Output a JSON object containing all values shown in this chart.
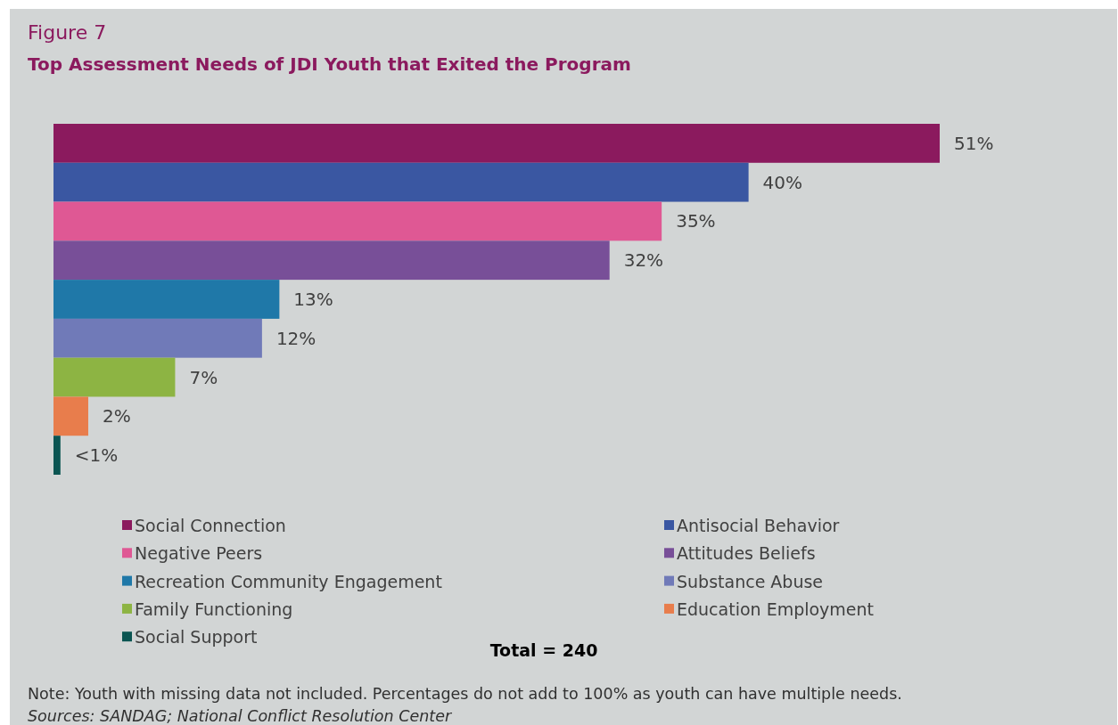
{
  "chart_data": {
    "type": "bar",
    "orientation": "horizontal",
    "stacked": true,
    "title": "Figure 7",
    "subtitle": "Top Assessment Needs of JDI Youth that Exited the Program",
    "categories": [
      null,
      null,
      null,
      null,
      null,
      null,
      null,
      null,
      null
    ],
    "series": [
      {
        "name": "Social Connection",
        "color": "#8b1a5e",
        "values": [
          51,
          null,
          null,
          null,
          null,
          null,
          null,
          null,
          null
        ],
        "value_labels": [
          "51%",
          null,
          null,
          null,
          null,
          null,
          null,
          null,
          null
        ]
      },
      {
        "name": "Antisocial Behavior",
        "color": "#3a57a2",
        "values": [
          null,
          40,
          null,
          null,
          null,
          null,
          null,
          null,
          null
        ],
        "value_labels": [
          null,
          "40%",
          null,
          null,
          null,
          null,
          null,
          null,
          null
        ]
      },
      {
        "name": "Negative Peers",
        "color": "#df5894",
        "values": [
          null,
          null,
          35,
          null,
          null,
          null,
          null,
          null,
          null
        ],
        "value_labels": [
          null,
          null,
          "35%",
          null,
          null,
          null,
          null,
          null,
          null
        ]
      },
      {
        "name": "Attitudes Beliefs",
        "color": "#784f98",
        "values": [
          null,
          null,
          null,
          32,
          null,
          null,
          null,
          null,
          null
        ],
        "value_labels": [
          null,
          null,
          null,
          "32%",
          null,
          null,
          null,
          null,
          null
        ]
      },
      {
        "name": "Recreation Community Engagement",
        "color": "#1f78a8",
        "values": [
          null,
          null,
          null,
          null,
          13,
          null,
          null,
          null,
          null
        ],
        "value_labels": [
          null,
          null,
          null,
          null,
          "13%",
          null,
          null,
          null,
          null
        ]
      },
      {
        "name": "Substance Abuse",
        "color": "#707ab8",
        "values": [
          null,
          null,
          null,
          null,
          null,
          12,
          null,
          null,
          null
        ],
        "value_labels": [
          null,
          null,
          null,
          null,
          null,
          "12%",
          null,
          null,
          null
        ]
      },
      {
        "name": "Family Functioning",
        "color": "#8db443",
        "values": [
          null,
          null,
          null,
          null,
          null,
          null,
          7,
          null,
          null
        ],
        "value_labels": [
          null,
          null,
          null,
          null,
          null,
          null,
          "7%",
          null,
          null
        ]
      },
      {
        "name": "Education Employment",
        "color": "#e87d4c",
        "values": [
          null,
          null,
          null,
          null,
          null,
          null,
          null,
          2,
          null
        ],
        "value_labels": [
          null,
          null,
          null,
          null,
          null,
          null,
          null,
          "2%",
          null
        ]
      },
      {
        "name": "Social Support",
        "color": "#0b5552",
        "values": [
          null,
          null,
          null,
          null,
          null,
          null,
          null,
          null,
          0.4
        ],
        "value_labels": [
          null,
          null,
          null,
          null,
          null,
          null,
          null,
          null,
          "<1%"
        ]
      }
    ],
    "legend": "bottom",
    "annotations": [
      "Total = 240",
      "Note: Youth with missing data not included. Percentages do not add to 100% as youth can have multiple needs.",
      "Sources: SANDAG; National Conflict Resolution Center"
    ]
  }
}
